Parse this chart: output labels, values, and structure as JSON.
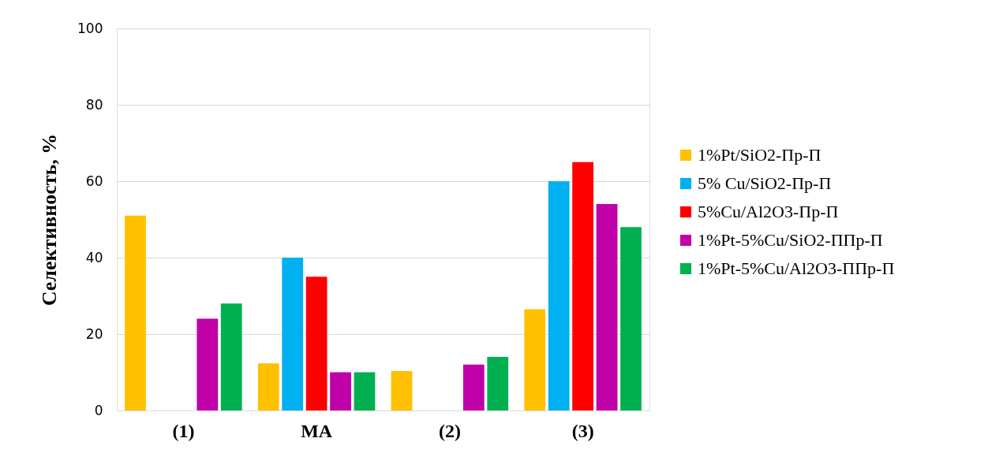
{
  "chart_data": {
    "type": "bar",
    "ylabel": "Селективность, %",
    "categories": [
      "(1)",
      "MA",
      "(2)",
      "(3)"
    ],
    "series": [
      {
        "name": "1%Pt/SiO2-Пр-П",
        "color": "#ffc000",
        "values": [
          51,
          12.3,
          10.3,
          26.5
        ]
      },
      {
        "name": "5% Cu/SiO2-Пр-П",
        "color": "#00b0f0",
        "values": [
          null,
          40,
          null,
          60
        ]
      },
      {
        "name": "5%Cu/Al2O3-Пр-П",
        "color": "#ff0000",
        "values": [
          null,
          35,
          null,
          65
        ]
      },
      {
        "name": "1%Pt-5%Cu/SiO2-ППр-П",
        "color": "#c000a8",
        "values": [
          24,
          10,
          12,
          54
        ]
      },
      {
        "name": "1%Pt-5%Cu/Al2O3-ППр-П",
        "color": "#00b050",
        "values": [
          28,
          10,
          14,
          48
        ]
      }
    ],
    "ylim": [
      0,
      100
    ],
    "yticks": [
      0,
      20,
      40,
      60,
      80,
      100
    ],
    "grid": "y",
    "legend": "right"
  }
}
